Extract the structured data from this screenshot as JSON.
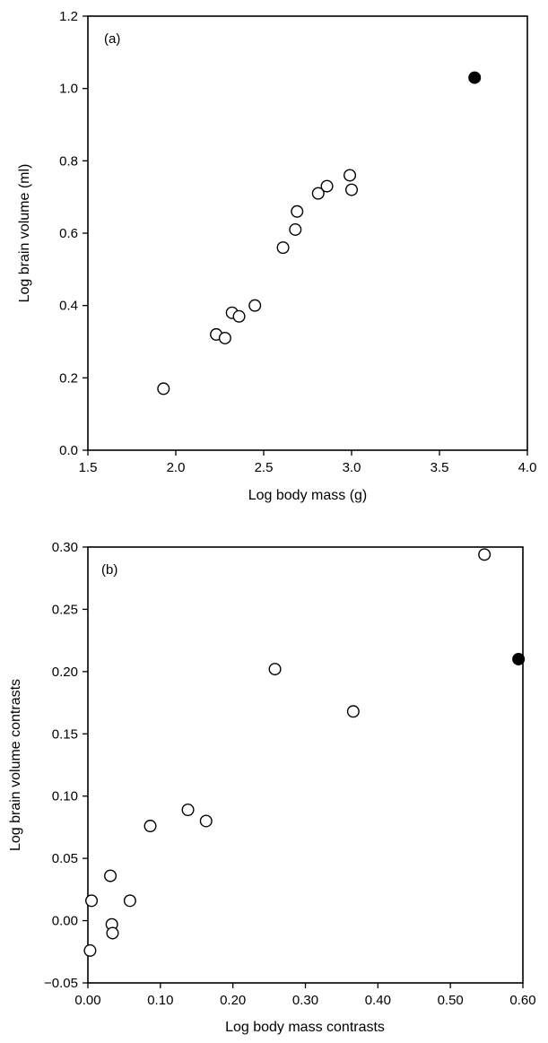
{
  "chart_data": [
    {
      "type": "scatter",
      "panel_label": "(a)",
      "xlabel": "Log body mass (g)",
      "ylabel": "Log brain volume (ml)",
      "xlim": [
        1.5,
        4.0
      ],
      "ylim": [
        0.0,
        1.2
      ],
      "xticks": [
        "1.5",
        "2.0",
        "2.5",
        "3.0",
        "3.5",
        "4.0"
      ],
      "yticks": [
        "0.0",
        "0.2",
        "0.4",
        "0.6",
        "0.8",
        "1.0",
        "1.2"
      ],
      "grid": false,
      "series": [
        {
          "marker": "open-circle",
          "points": [
            {
              "x": 1.93,
              "y": 0.17
            },
            {
              "x": 2.23,
              "y": 0.32
            },
            {
              "x": 2.28,
              "y": 0.31
            },
            {
              "x": 2.32,
              "y": 0.38
            },
            {
              "x": 2.36,
              "y": 0.37
            },
            {
              "x": 2.45,
              "y": 0.4
            },
            {
              "x": 2.61,
              "y": 0.56
            },
            {
              "x": 2.68,
              "y": 0.61
            },
            {
              "x": 2.69,
              "y": 0.66
            },
            {
              "x": 2.81,
              "y": 0.71
            },
            {
              "x": 2.86,
              "y": 0.73
            },
            {
              "x": 2.99,
              "y": 0.76
            },
            {
              "x": 3.0,
              "y": 0.72
            }
          ]
        },
        {
          "marker": "filled-circle",
          "points": [
            {
              "x": 3.7,
              "y": 1.03
            }
          ]
        }
      ]
    },
    {
      "type": "scatter",
      "panel_label": "(b)",
      "xlabel": "Log body mass contrasts",
      "ylabel": "Log brain volume contrasts",
      "xlim": [
        0.0,
        0.6
      ],
      "ylim": [
        -0.05,
        0.3
      ],
      "xticks": [
        "0.00",
        "0.10",
        "0.20",
        "0.30",
        "0.40",
        "0.50",
        "0.60"
      ],
      "yticks": [
        "−0.05",
        "0.00",
        "0.05",
        "0.10",
        "0.15",
        "0.20",
        "0.25",
        "0.30"
      ],
      "grid": false,
      "series": [
        {
          "marker": "open-circle",
          "points": [
            {
              "x": 0.003,
              "y": -0.024
            },
            {
              "x": 0.005,
              "y": 0.016
            },
            {
              "x": 0.031,
              "y": 0.036
            },
            {
              "x": 0.033,
              "y": -0.003
            },
            {
              "x": 0.034,
              "y": -0.01
            },
            {
              "x": 0.058,
              "y": 0.016
            },
            {
              "x": 0.086,
              "y": 0.076
            },
            {
              "x": 0.138,
              "y": 0.089
            },
            {
              "x": 0.163,
              "y": 0.08
            },
            {
              "x": 0.258,
              "y": 0.202
            },
            {
              "x": 0.366,
              "y": 0.168
            },
            {
              "x": 0.547,
              "y": 0.294
            }
          ]
        },
        {
          "marker": "filled-circle",
          "points": [
            {
              "x": 0.594,
              "y": 0.21
            }
          ]
        }
      ]
    }
  ]
}
